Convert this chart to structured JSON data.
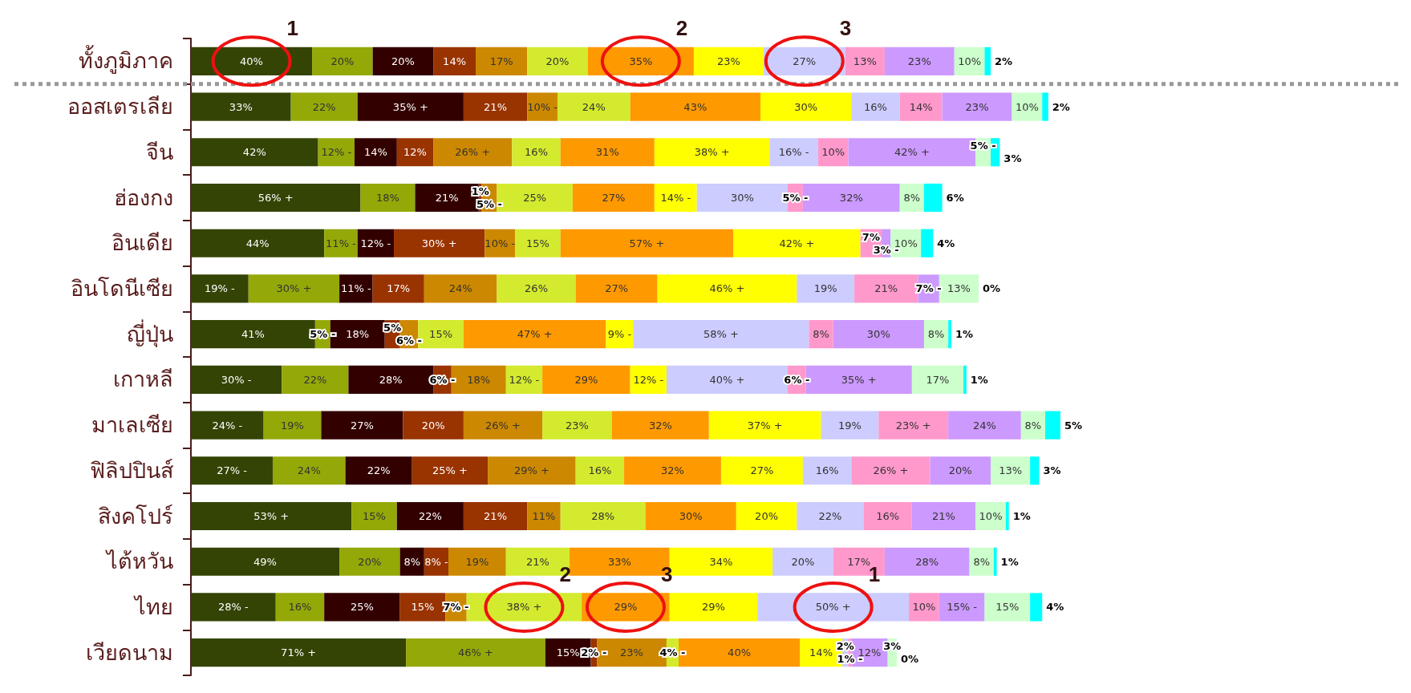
{
  "chart_data": {
    "type": "bar",
    "orientation": "horizontal",
    "stacked": true,
    "categories": [
      "ทั้งภูมิภาค",
      "ออสเตรเลีย",
      "จีน",
      "ฮ่องกง",
      "อินเดีย",
      "อินโดนีเซีย",
      "ญี่ปุ่น",
      "เกาหลี",
      "มาเลเซีย",
      "ฟิลิปปินส์",
      "สิงคโปร์",
      "ไต้หวัน",
      "ไทย",
      "เวียดนาม"
    ],
    "series": [
      {
        "color": "#344405",
        "values": [
          40,
          33,
          42,
          56,
          44,
          19,
          41,
          30,
          24,
          27,
          53,
          49,
          28,
          71
        ],
        "value_labels": [
          "40%",
          "33%",
          "42%",
          "56% +",
          "44%",
          "19% -",
          "41%",
          "30% -",
          "24% -",
          "27% -",
          "53% +",
          "49%",
          "28% -",
          "71% +"
        ]
      },
      {
        "color": "#94a808",
        "values": [
          20,
          22,
          12,
          18,
          11,
          30,
          5,
          22,
          19,
          24,
          15,
          20,
          16,
          46
        ],
        "value_labels": [
          "20%",
          "22%",
          "12% -",
          "18%",
          "11% -",
          "30% +",
          "5% -",
          "22%",
          "19%",
          "24%",
          "15%",
          "20%",
          "16%",
          "46% +"
        ]
      },
      {
        "color": "#330000",
        "values": [
          20,
          35,
          14,
          21,
          12,
          11,
          18,
          28,
          27,
          22,
          22,
          8,
          25,
          15
        ],
        "value_labels": [
          "20%",
          "35% +",
          "14%",
          "21%",
          "12% -",
          "11% -",
          "18%",
          "28%",
          "27%",
          "22%",
          "22%",
          "8%",
          "25%",
          "15%"
        ]
      },
      {
        "color": "#993300",
        "values": [
          14,
          21,
          12,
          1,
          30,
          17,
          5,
          6,
          20,
          25,
          21,
          8,
          15,
          2
        ],
        "value_labels": [
          "14%",
          "21%",
          "12%",
          "1%",
          "30% +",
          "17%",
          "5%",
          "6% -",
          "20%",
          "25% +",
          "21%",
          "8% -",
          "15%",
          "2% -"
        ]
      },
      {
        "color": "#cc8800",
        "values": [
          17,
          10,
          26,
          5,
          10,
          24,
          6,
          18,
          26,
          29,
          11,
          19,
          7,
          23
        ],
        "value_labels": [
          "17%",
          "10% -",
          "26% +",
          "5% -",
          "10% -",
          "24%",
          "6% -",
          "18%",
          "26% +",
          "29% +",
          "11%",
          "19%",
          "7% -",
          "23%"
        ]
      },
      {
        "color": "#d4ea2e",
        "values": [
          20,
          24,
          16,
          25,
          15,
          26,
          15,
          12,
          23,
          16,
          28,
          21,
          38,
          4
        ],
        "value_labels": [
          "20%",
          "24%",
          "16%",
          "25%",
          "15%",
          "26%",
          "15%",
          "12% -",
          "23%",
          "16%",
          "28%",
          "21%",
          "38% +",
          "4% -"
        ]
      },
      {
        "color": "#ff9900",
        "values": [
          35,
          43,
          31,
          27,
          57,
          27,
          47,
          29,
          32,
          32,
          30,
          33,
          29,
          40
        ],
        "value_labels": [
          "35%",
          "43%",
          "31%",
          "27%",
          "57% +",
          "27%",
          "47% +",
          "29%",
          "32%",
          "32%",
          "30%",
          "33%",
          "29%",
          "40%"
        ]
      },
      {
        "color": "#ffff00",
        "values": [
          23,
          30,
          38,
          14,
          42,
          46,
          9,
          12,
          37,
          27,
          20,
          34,
          29,
          14
        ],
        "value_labels": [
          "23%",
          "30%",
          "38% +",
          "14% -",
          "42% +",
          "46% +",
          "9% -",
          "12% -",
          "37% +",
          "27%",
          "20%",
          "34%",
          "29%",
          "14%"
        ]
      },
      {
        "color": "#ccccff",
        "values": [
          27,
          16,
          16,
          30,
          null,
          19,
          58,
          40,
          19,
          16,
          22,
          20,
          50,
          2
        ],
        "value_labels": [
          "27%",
          "16%",
          "16% -",
          "30%",
          null,
          "19%",
          "58% +",
          "40% +",
          "19%",
          "16%",
          "22%",
          "20%",
          "50% +",
          "2%"
        ]
      },
      {
        "color": "#ff99cc",
        "values": [
          13,
          14,
          10,
          5,
          7,
          21,
          8,
          6,
          23,
          26,
          16,
          17,
          10,
          1
        ],
        "value_labels": [
          "13%",
          "14%",
          "10%",
          "5% -",
          "7%",
          "21%",
          "8%",
          "6% -",
          "23% +",
          "26% +",
          "16%",
          "17%",
          "10%",
          "1% -"
        ]
      },
      {
        "color": "#cc99ff",
        "values": [
          23,
          23,
          42,
          32,
          3,
          7,
          30,
          35,
          24,
          20,
          21,
          28,
          15,
          12
        ],
        "value_labels": [
          "23%",
          "23%",
          "42% +",
          "32%",
          "3% -",
          "7% -",
          "30%",
          "35% +",
          "24%",
          "20%",
          "21%",
          "28%",
          "15% -",
          "12%"
        ]
      },
      {
        "color": "#ccffcc",
        "values": [
          10,
          10,
          5,
          8,
          10,
          13,
          8,
          17,
          8,
          13,
          10,
          8,
          15,
          3
        ],
        "value_labels": [
          "10%",
          "10%",
          "5% -",
          "8%",
          "10%",
          "13%",
          "8%",
          "17%",
          "8%",
          "13%",
          "10%",
          "8%",
          "15%",
          "3%"
        ]
      },
      {
        "color": "#00ffff",
        "values": [
          2,
          2,
          3,
          6,
          4,
          0,
          1,
          1,
          5,
          3,
          1,
          1,
          4,
          0
        ],
        "value_labels": [
          "2%",
          "2%",
          "3%",
          "6%",
          "4%",
          "0%",
          "1%",
          "1%",
          "5%",
          "3%",
          "1%",
          "1%",
          "4%",
          "0%"
        ]
      }
    ],
    "annotations": [
      {
        "text": "1",
        "x": 40,
        "y": "ทั้งภูมิภาค"
      },
      {
        "text": "2",
        "x": 166,
        "y": "ทั้งภูมิภาค"
      },
      {
        "text": "3",
        "x": 216,
        "y": "ทั้งภูมิภาค"
      },
      {
        "text": "2",
        "x": 129,
        "y": "ไทย"
      },
      {
        "text": "3",
        "x": 158,
        "y": "ไทย"
      },
      {
        "text": "1",
        "x": 237,
        "y": "ไทย"
      }
    ],
    "grid": false
  }
}
